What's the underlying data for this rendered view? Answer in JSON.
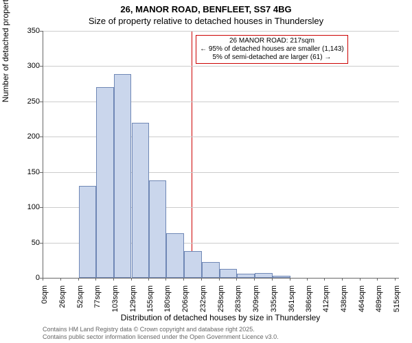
{
  "title_line1": "26, MANOR ROAD, BENFLEET, SS7 4BG",
  "title_line2": "Size of property relative to detached houses in Thundersley",
  "y_axis_label": "Number of detached properties",
  "x_axis_label": "Distribution of detached houses by size in Thundersley",
  "footer_line1": "Contains HM Land Registry data © Crown copyright and database right 2025.",
  "footer_line2": "Contains public sector information licensed under the Open Government Licence v3.0.",
  "annotation": {
    "line1": "26 MANOR ROAD: 217sqm",
    "line2": "← 95% of detached houses are smaller (1,143)",
    "line3": "5% of semi-detached are larger (61) →"
  },
  "chart": {
    "type": "histogram",
    "x_min": 0,
    "x_max": 520,
    "y_min": 0,
    "y_max": 350,
    "y_ticks": [
      0,
      50,
      100,
      150,
      200,
      250,
      300,
      350
    ],
    "x_ticks": [
      0,
      26,
      52,
      77,
      103,
      129,
      155,
      180,
      206,
      232,
      258,
      283,
      309,
      335,
      361,
      386,
      412,
      438,
      464,
      489,
      515
    ],
    "x_tick_suffix": "sqm",
    "reference_x": 217,
    "bar_fill": "#cad6ec",
    "bar_stroke": "#6f87b5",
    "grid_color": "#cccccc",
    "ref_line_color": "#cc0000",
    "background": "#ffffff",
    "bars": [
      {
        "x0": 52,
        "x1": 77,
        "y": 130
      },
      {
        "x0": 77,
        "x1": 103,
        "y": 270
      },
      {
        "x0": 103,
        "x1": 129,
        "y": 289
      },
      {
        "x0": 129,
        "x1": 155,
        "y": 220
      },
      {
        "x0": 155,
        "x1": 180,
        "y": 138
      },
      {
        "x0": 180,
        "x1": 206,
        "y": 63
      },
      {
        "x0": 206,
        "x1": 232,
        "y": 38
      },
      {
        "x0": 232,
        "x1": 258,
        "y": 22
      },
      {
        "x0": 258,
        "x1": 283,
        "y": 13
      },
      {
        "x0": 283,
        "x1": 309,
        "y": 6
      },
      {
        "x0": 309,
        "x1": 335,
        "y": 7
      },
      {
        "x0": 335,
        "x1": 361,
        "y": 3
      }
    ],
    "title_fontsize": 13,
    "axis_label_fontsize": 12,
    "tick_fontsize": 11,
    "footer_fontsize": 9,
    "footer_color": "#666666"
  }
}
